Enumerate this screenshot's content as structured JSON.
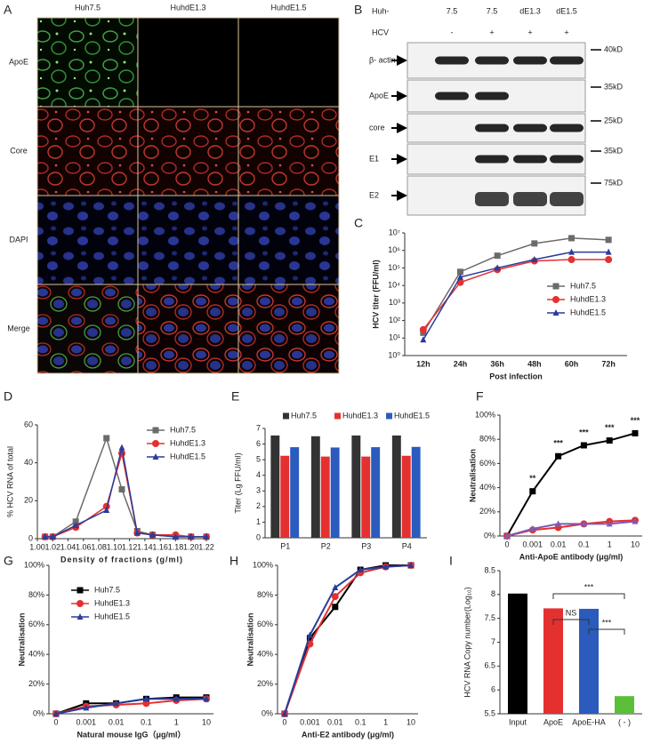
{
  "panel_a": {
    "label": "A",
    "columns": [
      "Huh7.5",
      "HuhdE1.3",
      "HuhdE1.5"
    ],
    "rows": [
      "ApoE",
      "Core",
      "DAPI",
      "Merge"
    ]
  },
  "panel_b": {
    "label": "B",
    "cell_line_label": "Huh-",
    "cell_lines": [
      "7.5",
      "7.5",
      "dE1.3",
      "dE1.5"
    ],
    "hcv_label": "HCV",
    "hcv": [
      "-",
      "+",
      "+",
      "+"
    ],
    "blots": [
      {
        "protein": "β- actin",
        "size": "40kD"
      },
      {
        "protein": "ApoE",
        "size": "35kD"
      },
      {
        "protein": "core",
        "size": "25kD"
      },
      {
        "protein": "E1",
        "size": "35kD"
      },
      {
        "protein": "E2",
        "size": "75kD"
      }
    ]
  },
  "chart_data": [
    {
      "label": "C",
      "type": "line",
      "ylabel": "HCV titer (FFU/ml)",
      "xlabel": "Post infection",
      "categories": [
        "12h",
        "24h",
        "36h",
        "48h",
        "60h",
        "72h"
      ],
      "log_scale": true,
      "ylim": [
        1,
        10000000
      ],
      "yticks": [
        {
          "value": 1,
          "label": "10⁰"
        },
        {
          "value": 10,
          "label": "10¹"
        },
        {
          "value": 100,
          "label": "10²"
        },
        {
          "value": 1000,
          "label": "10³"
        },
        {
          "value": 10000,
          "label": "10⁴"
        },
        {
          "value": 100000,
          "label": "10⁵"
        },
        {
          "value": 1000000,
          "label": "10⁶"
        },
        {
          "value": 10000000,
          "label": "10⁷"
        }
      ],
      "legend": "right",
      "series": [
        {
          "name": "Huh7.5",
          "color": "#6b6b6b",
          "marker": "square",
          "values": [
            20,
            60000,
            500000,
            2500000,
            5000000,
            4000000
          ]
        },
        {
          "name": "HuhdE1.3",
          "color": "#e53030",
          "marker": "circle",
          "values": [
            30,
            15000,
            80000,
            250000,
            300000,
            300000
          ]
        },
        {
          "name": "HuhdE1.5",
          "color": "#2a3c9a",
          "marker": "triangle",
          "values": [
            8,
            30000,
            100000,
            300000,
            800000,
            800000
          ]
        }
      ]
    },
    {
      "label": "D",
      "type": "line",
      "ylabel": "% HCV RNA of total",
      "xlabel": "Density of fractions (g/ml)",
      "x": [
        1.01,
        1.02,
        1.05,
        1.09,
        1.11,
        1.13,
        1.15,
        1.18,
        1.2,
        1.22
      ],
      "xlim": [
        1,
        1.22
      ],
      "xticks": [
        {
          "value": 1,
          "label": "1.00"
        },
        {
          "value": 1.02,
          "label": "1.02"
        },
        {
          "value": 1.04,
          "label": "1.04"
        },
        {
          "value": 1.06,
          "label": "1.06"
        },
        {
          "value": 1.08,
          "label": "1.08"
        },
        {
          "value": 1.1,
          "label": "1.10"
        },
        {
          "value": 1.12,
          "label": "1.12"
        },
        {
          "value": 1.14,
          "label": "1.14"
        },
        {
          "value": 1.16,
          "label": "1.16"
        },
        {
          "value": 1.18,
          "label": "1.18"
        },
        {
          "value": 1.2,
          "label": "1.20"
        },
        {
          "value": 1.22,
          "label": "1.22"
        }
      ],
      "ylim": [
        0,
        60
      ],
      "yticks": [
        0,
        20,
        40,
        60
      ],
      "legend": "upper right",
      "series": [
        {
          "name": "Huh7.5",
          "color": "#6b6b6b",
          "marker": "square",
          "values": [
            1,
            1,
            9,
            53,
            26,
            4,
            2,
            1,
            1,
            1
          ]
        },
        {
          "name": "HuhdE1.3",
          "color": "#e53030",
          "marker": "circle",
          "values": [
            1,
            1,
            6,
            17,
            45,
            3,
            2,
            2,
            1,
            1
          ]
        },
        {
          "name": "HuhdE1.5",
          "color": "#2a3c9a",
          "marker": "triangle",
          "values": [
            1,
            1,
            7,
            15,
            48,
            3,
            2,
            1,
            1,
            1
          ]
        }
      ]
    },
    {
      "label": "E",
      "type": "bar",
      "ylabel": "Titer (Lg FFU/ml)",
      "categories": [
        "P1",
        "P2",
        "P3",
        "P4"
      ],
      "ylim": [
        0,
        7
      ],
      "yticks": [
        0,
        1,
        2,
        3,
        4,
        5,
        6,
        7
      ],
      "legend": "top",
      "series": [
        {
          "name": "Huh7.5",
          "color": "#333333",
          "values": [
            6.55,
            6.5,
            6.55,
            6.55
          ]
        },
        {
          "name": "HuhdE1.3",
          "color": "#e53030",
          "values": [
            5.25,
            5.2,
            5.2,
            5.25
          ]
        },
        {
          "name": "HuhdE1.5",
          "color": "#2a5bbd",
          "values": [
            5.8,
            5.78,
            5.8,
            5.82
          ]
        }
      ]
    },
    {
      "label": "F",
      "type": "line",
      "ylabel": "Neutralisation",
      "xlabel": "Anti-ApoE antibody (μg/ml)",
      "categories": [
        "0",
        "0.001",
        "0.01",
        "0.1",
        "1",
        "10"
      ],
      "ylim": [
        0,
        100
      ],
      "yticks": [
        {
          "value": 0,
          "label": "0%"
        },
        {
          "value": 20,
          "label": "20%"
        },
        {
          "value": 40,
          "label": "40%"
        },
        {
          "value": 60,
          "label": "60%"
        },
        {
          "value": 80,
          "label": "80%"
        },
        {
          "value": 100,
          "label": "100%"
        }
      ],
      "significance": [
        null,
        "**",
        "***",
        "***",
        "***",
        "***"
      ],
      "series": [
        {
          "name": "Huh7.5",
          "color": "#000000",
          "marker": "square",
          "values": [
            0,
            37,
            66,
            75,
            79,
            85
          ]
        },
        {
          "name": "HuhdE1.3",
          "color": "#e53030",
          "marker": "circle",
          "values": [
            0,
            5,
            7,
            10,
            12,
            13
          ]
        },
        {
          "name": "HuhdE1.5",
          "color": "#7d5bb5",
          "marker": "triangle",
          "values": [
            0,
            6,
            10,
            10,
            10,
            12
          ]
        }
      ]
    },
    {
      "label": "G",
      "type": "line",
      "ylabel": "Neutralisation",
      "xlabel": "Natural mouse IgG（μg/ml）",
      "categories": [
        "0",
        "0.001",
        "0.01",
        "0.1",
        "1",
        "10"
      ],
      "ylim": [
        0,
        100
      ],
      "yticks": [
        {
          "value": 0,
          "label": "0%"
        },
        {
          "value": 20,
          "label": "20%"
        },
        {
          "value": 40,
          "label": "40%"
        },
        {
          "value": 60,
          "label": "60%"
        },
        {
          "value": 80,
          "label": "80%"
        },
        {
          "value": 100,
          "label": "100%"
        }
      ],
      "legend": "upper left",
      "series": [
        {
          "name": "Huh7.5",
          "color": "#000000",
          "marker": "square",
          "values": [
            0,
            7,
            7,
            10,
            11,
            11
          ]
        },
        {
          "name": "HuhdE1.3",
          "color": "#e53030",
          "marker": "circle",
          "values": [
            0,
            5,
            6,
            7,
            9,
            10
          ]
        },
        {
          "name": "HuhdE1.5",
          "color": "#2a3c9a",
          "marker": "triangle",
          "values": [
            0,
            4,
            7,
            10,
            10,
            10
          ]
        }
      ]
    },
    {
      "label": "H",
      "type": "line",
      "ylabel": "Neutralisation",
      "xlabel": "Anti-E2 antibody (μg/ml)",
      "categories": [
        "0",
        "0.001",
        "0.01",
        "0.1",
        "1",
        "10"
      ],
      "ylim": [
        0,
        100
      ],
      "yticks": [
        {
          "value": 0,
          "label": "0%"
        },
        {
          "value": 20,
          "label": "20%"
        },
        {
          "value": 40,
          "label": "40%"
        },
        {
          "value": 60,
          "label": "60%"
        },
        {
          "value": 80,
          "label": "80%"
        },
        {
          "value": 100,
          "label": "100%"
        }
      ],
      "series": [
        {
          "name": "Huh7.5",
          "color": "#000000",
          "marker": "square",
          "values": [
            0,
            51,
            72,
            97,
            100,
            100
          ]
        },
        {
          "name": "HuhdE1.3",
          "color": "#e53030",
          "marker": "circle",
          "values": [
            0,
            47,
            79,
            95,
            99,
            100
          ]
        },
        {
          "name": "HuhdE1.5",
          "color": "#2a3c9a",
          "marker": "triangle",
          "values": [
            0,
            53,
            85,
            97,
            99,
            100
          ]
        }
      ]
    },
    {
      "label": "I",
      "type": "bar",
      "ylabel": "HCV RNA Copy number(Log₁₀)",
      "categories": [
        "Input",
        "ApoE",
        "ApoE-HA",
        "( - )"
      ],
      "values": [
        8.02,
        7.71,
        7.7,
        5.87
      ],
      "colors": [
        "#000000",
        "#e53030",
        "#2a5bbd",
        "#5cbf3a"
      ],
      "ylim": [
        5.5,
        8.5
      ],
      "yticks": [
        5.5,
        6,
        6.5,
        7,
        7.5,
        8,
        8.5
      ],
      "significance": [
        "***",
        "NS",
        "***"
      ]
    }
  ]
}
